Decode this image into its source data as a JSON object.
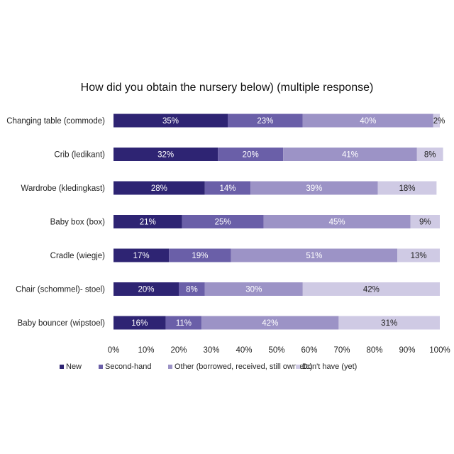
{
  "chart_data": {
    "type": "bar",
    "orientation": "horizontal-stacked-100",
    "title": "How did you obtain the nursery below) (multiple response)",
    "categories": [
      "Changing table (commode)",
      "Crib (ledikant)",
      "Wardrobe (kledingkast)",
      "Baby box (box)",
      "Cradle (wiegje)",
      "Chair (schommel)- stoel)",
      "Baby bouncer (wipstoel)"
    ],
    "series": [
      {
        "name": "New",
        "color": "#2e2473",
        "label_color": "#ffffff",
        "values": [
          35,
          32,
          28,
          21,
          17,
          20,
          16
        ]
      },
      {
        "name": "Second-hand",
        "color": "#6a5fa8",
        "label_color": "#ffffff",
        "values": [
          23,
          20,
          14,
          25,
          19,
          8,
          11
        ]
      },
      {
        "name": "Other (borrowed, received, still own etc)",
        "color": "#9c93c6",
        "label_color": "#ffffff",
        "values": [
          40,
          41,
          39,
          45,
          51,
          30,
          42
        ]
      },
      {
        "name": "Don't have (yet)",
        "color": "#cfcae4",
        "label_color": "#222222",
        "values": [
          2,
          8,
          18,
          9,
          13,
          42,
          31
        ]
      }
    ],
    "value_labels": [
      [
        "35%",
        "23%",
        "40%",
        "2%"
      ],
      [
        "32%",
        "20%",
        "41%",
        "8%"
      ],
      [
        "28%",
        "14%",
        "39%",
        "18%"
      ],
      [
        "21%",
        "25%",
        "45%",
        "9%"
      ],
      [
        "17%",
        "19%",
        "51%",
        "13%"
      ],
      [
        "20%",
        "8%",
        "30%",
        "42%"
      ],
      [
        "16%",
        "11%",
        "42%",
        "31%"
      ]
    ],
    "x_ticks": [
      "0%",
      "10%",
      "20%",
      "30%",
      "40%",
      "50%",
      "60%",
      "70%",
      "80%",
      "90%",
      "100%"
    ],
    "xlim": [
      0,
      100
    ],
    "grid": false,
    "legend_position": "bottom"
  }
}
